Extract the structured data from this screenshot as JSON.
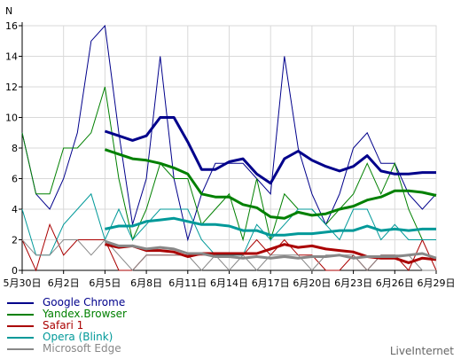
{
  "chart_data": {
    "type": "line",
    "ylabel": "N",
    "ylim": [
      0,
      16
    ],
    "yticks": [
      0,
      2,
      4,
      6,
      8,
      10,
      12,
      14,
      16
    ],
    "xlim": [
      0,
      30
    ],
    "xticks": [
      {
        "day": 0,
        "label": "5月30日"
      },
      {
        "day": 3,
        "label": "6月2日"
      },
      {
        "day": 6,
        "label": "6月5日"
      },
      {
        "day": 9,
        "label": "6月8日"
      },
      {
        "day": 12,
        "label": "6月11日"
      },
      {
        "day": 15,
        "label": "6月14日"
      },
      {
        "day": 18,
        "label": "6月17日"
      },
      {
        "day": 21,
        "label": "6月20日"
      },
      {
        "day": 24,
        "label": "6月23日"
      },
      {
        "day": 27,
        "label": "6月26日"
      },
      {
        "day": 30,
        "label": "6月29日"
      }
    ],
    "grid": true,
    "series": [
      {
        "name": "Google Chrome",
        "color": "#00008b",
        "daily": [
          9,
          5,
          4,
          6,
          9,
          15,
          16,
          9,
          3,
          6,
          14,
          6,
          2,
          5,
          7,
          7,
          7,
          6,
          5,
          14,
          8,
          5,
          3,
          5,
          8,
          9,
          7,
          7,
          5,
          4,
          5
        ],
        "avg_start": 6,
        "average": [
          9.1,
          8.8,
          8.5,
          8.8,
          10.0,
          10.0,
          8.4,
          6.6,
          6.6,
          7.1,
          7.3,
          6.3,
          5.7,
          7.3,
          7.8,
          7.2,
          6.8,
          6.5,
          6.8,
          7.5,
          6.5,
          6.3,
          6.3,
          6.4,
          6.4
        ]
      },
      {
        "name": "Yandex.Browser",
        "color": "#008000",
        "daily": [
          9,
          5,
          5,
          8,
          8,
          9,
          12,
          6,
          2,
          4,
          7,
          6,
          6,
          3,
          4,
          5,
          2,
          6,
          2,
          5,
          4,
          4,
          3,
          4,
          5,
          7,
          5,
          7,
          4,
          2,
          2
        ],
        "avg_start": 6,
        "average": [
          7.9,
          7.6,
          7.3,
          7.2,
          7.0,
          6.7,
          6.3,
          5.0,
          4.8,
          4.8,
          4.3,
          4.1,
          3.5,
          3.4,
          3.8,
          3.6,
          3.7,
          4.0,
          4.2,
          4.6,
          4.8,
          5.2,
          5.2,
          5.1,
          4.9
        ]
      },
      {
        "name": "Safari 1",
        "color": "#aa0000",
        "daily": [
          2,
          0,
          3,
          1,
          2,
          2,
          2,
          0,
          0,
          1,
          1,
          1,
          1,
          1,
          1,
          1,
          1,
          2,
          1,
          2,
          1,
          1,
          0,
          0,
          1,
          0,
          1,
          1,
          0,
          2,
          0
        ],
        "avg_start": 6,
        "average": [
          1.7,
          1.5,
          1.6,
          1.3,
          1.3,
          1.2,
          0.9,
          1.1,
          1.1,
          1.1,
          1.1,
          1.1,
          1.4,
          1.7,
          1.5,
          1.6,
          1.4,
          1.3,
          1.2,
          0.9,
          0.8,
          0.8,
          0.5,
          0.8,
          0.7
        ]
      },
      {
        "name": "Opera (Blink)",
        "color": "#009999",
        "daily": [
          4,
          1,
          1,
          3,
          4,
          5,
          2,
          4,
          2,
          3,
          4,
          4,
          4,
          2,
          1,
          1,
          1,
          3,
          2,
          3,
          4,
          4,
          3,
          2,
          4,
          4,
          2,
          3,
          2,
          2,
          2
        ],
        "avg_start": 6,
        "average": [
          2.7,
          2.9,
          2.9,
          3.2,
          3.3,
          3.4,
          3.2,
          3.0,
          3.0,
          2.9,
          2.6,
          2.6,
          2.3,
          2.3,
          2.4,
          2.4,
          2.5,
          2.6,
          2.6,
          2.9,
          2.6,
          2.7,
          2.6,
          2.7,
          2.7
        ]
      },
      {
        "name": "Microsoft Edge",
        "color": "#888888",
        "daily": [
          2,
          1,
          1,
          2,
          2,
          1,
          2,
          1,
          0,
          1,
          1,
          1,
          1,
          0,
          1,
          0,
          1,
          0,
          1,
          1,
          1,
          0,
          1,
          1,
          1,
          0,
          1,
          1,
          1,
          0,
          0
        ],
        "avg_start": 6,
        "average": [
          1.9,
          1.6,
          1.6,
          1.4,
          1.5,
          1.4,
          1.1,
          1.1,
          0.9,
          0.9,
          0.8,
          0.9,
          0.8,
          0.9,
          0.8,
          0.9,
          0.9,
          1.0,
          0.8,
          0.9,
          0.9,
          0.9,
          1.0,
          1.1,
          0.8
        ]
      }
    ]
  },
  "brand": "LiveInternet"
}
